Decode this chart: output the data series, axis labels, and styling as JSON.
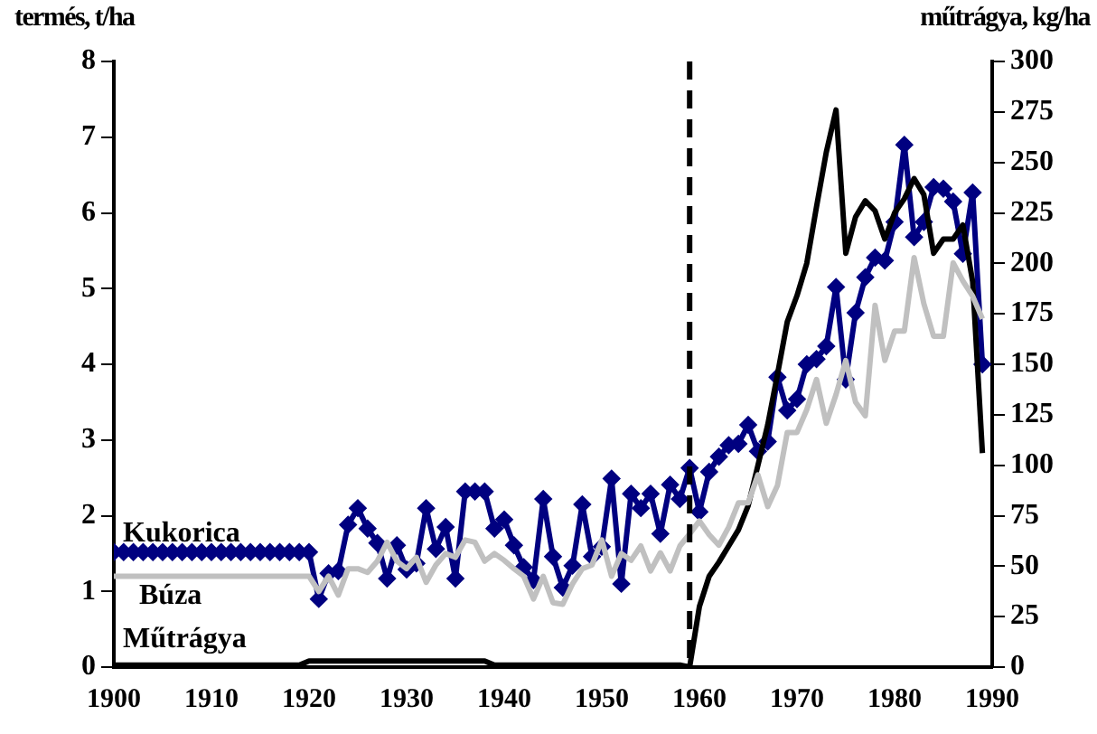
{
  "chart_data": {
    "type": "line",
    "ylabel": "termés, t/ha",
    "y2label": "műtrágya, kg/ha",
    "x": [
      1900,
      1901,
      1902,
      1903,
      1904,
      1905,
      1906,
      1907,
      1908,
      1909,
      1910,
      1911,
      1912,
      1913,
      1914,
      1915,
      1916,
      1917,
      1918,
      1919,
      1920,
      1921,
      1922,
      1923,
      1924,
      1925,
      1926,
      1927,
      1928,
      1929,
      1930,
      1931,
      1932,
      1933,
      1934,
      1935,
      1936,
      1937,
      1938,
      1939,
      1940,
      1941,
      1942,
      1943,
      1944,
      1945,
      1946,
      1947,
      1948,
      1949,
      1950,
      1951,
      1952,
      1953,
      1954,
      1955,
      1956,
      1957,
      1958,
      1959,
      1960,
      1961,
      1962,
      1963,
      1964,
      1965,
      1966,
      1967,
      1968,
      1969,
      1970,
      1971,
      1972,
      1973,
      1974,
      1975,
      1976,
      1977,
      1978,
      1979,
      1980,
      1981,
      1982,
      1983,
      1984,
      1985,
      1986,
      1987,
      1988,
      1989
    ],
    "series": [
      {
        "name": "Búza",
        "color": "#c0c0c0",
        "marker": "none",
        "values": [
          1.2,
          1.2,
          1.2,
          1.2,
          1.2,
          1.2,
          1.2,
          1.2,
          1.2,
          1.2,
          1.2,
          1.2,
          1.2,
          1.2,
          1.2,
          1.2,
          1.2,
          1.2,
          1.2,
          1.2,
          1.2,
          1.0,
          1.2,
          0.95,
          1.3,
          1.3,
          1.25,
          1.4,
          1.65,
          1.4,
          1.3,
          1.45,
          1.12,
          1.35,
          1.5,
          1.45,
          1.68,
          1.65,
          1.4,
          1.5,
          1.41,
          1.3,
          1.2,
          0.9,
          1.2,
          0.85,
          0.83,
          1.1,
          1.3,
          1.35,
          1.68,
          1.2,
          1.5,
          1.41,
          1.6,
          1.27,
          1.51,
          1.27,
          1.6,
          1.76,
          1.93,
          1.75,
          1.61,
          1.85,
          2.17,
          2.17,
          2.54,
          2.12,
          2.4,
          3.1,
          3.1,
          3.4,
          3.8,
          3.22,
          3.6,
          4.05,
          3.5,
          3.32,
          4.78,
          4.05,
          4.44,
          4.44,
          5.41,
          4.8,
          4.37,
          4.37,
          5.34,
          5.1,
          4.9,
          4.6
        ]
      },
      {
        "name": "Műtrágya",
        "color": "#000000",
        "marker": "none",
        "axis": "y2",
        "values": [
          1,
          1,
          1,
          1,
          1,
          1,
          1,
          1,
          1,
          1,
          1,
          1,
          1,
          1,
          1,
          1,
          1,
          1,
          1,
          1,
          3,
          3,
          3,
          3,
          3,
          3,
          3,
          3,
          3,
          3,
          3,
          3,
          3,
          3,
          3,
          3,
          3,
          3,
          3,
          1,
          1,
          1,
          1,
          1,
          1,
          1,
          1,
          1,
          1,
          1,
          1,
          1,
          1,
          1,
          1,
          1,
          1,
          1,
          1,
          0,
          30,
          45,
          52,
          60,
          68,
          80,
          100,
          120,
          145,
          171,
          184,
          200,
          228,
          255,
          276,
          205,
          223,
          231,
          226,
          212,
          225,
          232,
          242,
          234,
          205,
          212,
          212,
          219,
          191,
          106
        ]
      },
      {
        "name": "Kukorica",
        "color": "#000080",
        "marker": "diamond",
        "values": [
          1.52,
          1.52,
          1.52,
          1.52,
          1.52,
          1.52,
          1.52,
          1.52,
          1.52,
          1.52,
          1.52,
          1.52,
          1.52,
          1.52,
          1.52,
          1.52,
          1.52,
          1.52,
          1.52,
          1.52,
          1.52,
          0.9,
          1.24,
          1.27,
          1.88,
          2.1,
          1.83,
          1.64,
          1.17,
          1.61,
          1.29,
          1.37,
          2.1,
          1.56,
          1.85,
          1.17,
          2.32,
          2.32,
          2.32,
          1.83,
          1.95,
          1.61,
          1.32,
          1.15,
          2.22,
          1.46,
          1.05,
          1.34,
          2.15,
          1.46,
          1.59,
          2.49,
          1.1,
          2.29,
          2.1,
          2.29,
          1.76,
          2.41,
          2.22,
          2.63,
          2.05,
          2.58,
          2.78,
          2.93,
          2.95,
          3.2,
          2.85,
          2.98,
          3.83,
          3.39,
          3.54,
          4.0,
          4.07,
          4.24,
          5.02,
          3.8,
          4.68,
          5.15,
          5.41,
          5.37,
          5.88,
          6.9,
          5.68,
          5.88,
          6.34,
          6.32,
          6.15,
          5.46,
          6.27,
          4.0
        ]
      }
    ],
    "xlim": [
      1900,
      1990
    ],
    "xticks": [
      1900,
      1910,
      1920,
      1930,
      1940,
      1950,
      1960,
      1970,
      1980,
      1990
    ],
    "ylim": [
      0,
      8
    ],
    "yticks": [
      0,
      1,
      2,
      3,
      4,
      5,
      6,
      7,
      8
    ],
    "y2lim": [
      0,
      300
    ],
    "y2ticks": [
      0,
      25,
      50,
      75,
      100,
      125,
      150,
      175,
      200,
      225,
      250,
      275,
      300
    ],
    "ref_lines": [
      {
        "axis": "x",
        "value": 1959,
        "color": "#000000",
        "line_style": "dashed"
      }
    ],
    "grid": false,
    "legend": false
  }
}
